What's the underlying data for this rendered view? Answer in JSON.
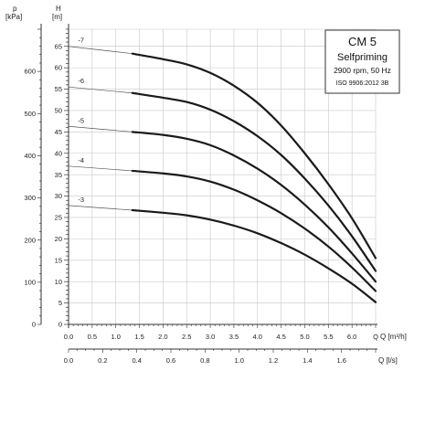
{
  "chart_data": {
    "type": "line",
    "info_box": {
      "title": "CM 5",
      "subtitle": "Selfpriming",
      "speed": "2900 rpm, 50 Hz",
      "standard": "ISO 9906:2012 3B"
    },
    "left_axis": {
      "symbol": "p",
      "unit": "[kPa]",
      "range": [
        0,
        700
      ],
      "major_ticks": [
        0,
        100,
        200,
        300,
        400,
        500,
        600
      ],
      "tick_labels": [
        "0",
        "100",
        "200",
        "300",
        "400",
        "500",
        "600"
      ]
    },
    "head_axis": {
      "symbol": "H",
      "unit": "[m]",
      "range": [
        0,
        69
      ],
      "major_ticks": [
        0,
        5,
        10,
        15,
        20,
        25,
        30,
        35,
        40,
        45,
        50,
        55,
        60,
        65
      ],
      "tick_labels": [
        "0",
        "5",
        "10",
        "15",
        "20",
        "25",
        "30",
        "35",
        "40",
        "45",
        "50",
        "55",
        "60",
        "65"
      ]
    },
    "x_axis_flow_m3h": {
      "label": "Q [m³/h]",
      "range": [
        0,
        6.5
      ],
      "ticks": [
        0,
        0.5,
        1.0,
        1.5,
        2.0,
        2.5,
        3.0,
        3.5,
        4.0,
        4.5,
        5.0,
        5.5,
        6.0
      ],
      "tick_labels": [
        "0.0",
        "0.5",
        "1.0",
        "1.5",
        "2.0",
        "2.5",
        "3.0",
        "3.5",
        "4.0",
        "4.5",
        "5.0",
        "5.5",
        "6.0"
      ],
      "end_label": "Q"
    },
    "x_axis_flow_ls": {
      "label": "Q [l/s]",
      "range": [
        0,
        1.8
      ],
      "ticks": [
        0,
        0.2,
        0.4,
        0.6,
        0.8,
        1.0,
        1.2,
        1.4,
        1.6
      ],
      "tick_labels": [
        "0.0",
        "0.2",
        "0.4",
        "0.6",
        "0.8",
        "1.0",
        "1.2",
        "1.4",
        "1.6"
      ]
    },
    "grid": true,
    "series": [
      {
        "name": "-7",
        "dashed": [
          [
            0,
            65
          ],
          [
            1.35,
            63.3
          ]
        ],
        "solid": [
          [
            1.35,
            63.3
          ],
          [
            2.0,
            62.0
          ],
          [
            2.5,
            60.8
          ],
          [
            3.0,
            58.8
          ],
          [
            3.5,
            55.8
          ],
          [
            4.0,
            51.8
          ],
          [
            4.5,
            46.5
          ],
          [
            5.0,
            40.0
          ],
          [
            5.5,
            32.8
          ],
          [
            6.0,
            24.8
          ],
          [
            6.5,
            15.5
          ]
        ]
      },
      {
        "name": "-6",
        "dashed": [
          [
            0,
            55.5
          ],
          [
            1.35,
            54.1
          ]
        ],
        "solid": [
          [
            1.35,
            54.1
          ],
          [
            2.0,
            53.0
          ],
          [
            2.5,
            52.0
          ],
          [
            3.0,
            50.2
          ],
          [
            3.5,
            47.5
          ],
          [
            4.0,
            44.0
          ],
          [
            4.5,
            39.6
          ],
          [
            5.0,
            34.1
          ],
          [
            5.5,
            27.8
          ],
          [
            6.0,
            20.6
          ],
          [
            6.5,
            12.5
          ]
        ]
      },
      {
        "name": "-5",
        "dashed": [
          [
            0,
            46.3
          ],
          [
            1.35,
            45.0
          ]
        ],
        "solid": [
          [
            1.35,
            45.0
          ],
          [
            2.0,
            44.3
          ],
          [
            2.5,
            43.4
          ],
          [
            3.0,
            41.9
          ],
          [
            3.5,
            39.5
          ],
          [
            4.0,
            36.4
          ],
          [
            4.5,
            32.6
          ],
          [
            5.0,
            28.0
          ],
          [
            5.5,
            22.7
          ],
          [
            6.0,
            16.6
          ],
          [
            6.5,
            10.0
          ]
        ]
      },
      {
        "name": "-4",
        "dashed": [
          [
            0,
            37.0
          ],
          [
            1.35,
            35.9
          ]
        ],
        "solid": [
          [
            1.35,
            35.9
          ],
          [
            2.0,
            35.3
          ],
          [
            2.5,
            34.6
          ],
          [
            3.0,
            33.4
          ],
          [
            3.5,
            31.5
          ],
          [
            4.0,
            29.0
          ],
          [
            4.5,
            26.0
          ],
          [
            5.0,
            22.4
          ],
          [
            5.5,
            18.2
          ],
          [
            6.0,
            13.3
          ],
          [
            6.5,
            7.8
          ]
        ]
      },
      {
        "name": "-3",
        "dashed": [
          [
            0,
            27.8
          ],
          [
            1.35,
            26.7
          ]
        ],
        "solid": [
          [
            1.35,
            26.7
          ],
          [
            2.0,
            26.1
          ],
          [
            2.5,
            25.5
          ],
          [
            3.0,
            24.5
          ],
          [
            3.5,
            23.1
          ],
          [
            4.0,
            21.3
          ],
          [
            4.5,
            19.0
          ],
          [
            5.0,
            16.3
          ],
          [
            5.5,
            13.1
          ],
          [
            6.0,
            9.5
          ],
          [
            6.5,
            5.2
          ]
        ]
      }
    ]
  }
}
